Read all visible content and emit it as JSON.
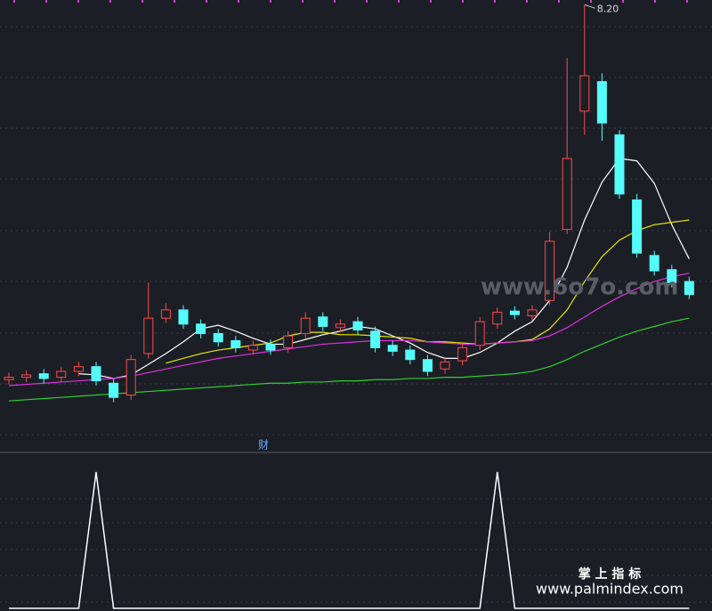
{
  "chart_data": [
    {
      "type": "candlestick",
      "open": [
        5.03,
        5.05,
        5.08,
        5.05,
        5.1,
        5.14,
        5.0,
        4.9,
        5.25,
        5.55,
        5.62,
        5.5,
        5.42,
        5.36,
        5.28,
        5.33,
        5.3,
        5.42,
        5.56,
        5.47,
        5.52,
        5.44,
        5.32,
        5.28,
        5.2,
        5.12,
        5.19,
        5.32,
        5.5,
        5.61,
        5.57,
        5.7,
        6.3,
        7.3,
        7.55,
        7.1,
        6.55,
        6.08,
        5.96,
        5.86
      ],
      "high": [
        5.09,
        5.11,
        5.12,
        5.14,
        5.18,
        5.18,
        5.04,
        5.24,
        5.85,
        5.68,
        5.66,
        5.54,
        5.46,
        5.4,
        5.36,
        5.37,
        5.44,
        5.6,
        5.6,
        5.54,
        5.56,
        5.48,
        5.36,
        5.32,
        5.24,
        5.22,
        5.34,
        5.56,
        5.64,
        5.65,
        5.66,
        6.28,
        7.75,
        8.2,
        7.62,
        7.14,
        6.6,
        6.12,
        6.0,
        5.9
      ],
      "low": [
        4.99,
        5.01,
        5.0,
        5.01,
        5.06,
        4.98,
        4.84,
        4.86,
        5.21,
        5.51,
        5.46,
        5.38,
        5.31,
        5.26,
        5.24,
        5.24,
        5.26,
        5.38,
        5.44,
        5.43,
        5.41,
        5.26,
        5.23,
        5.16,
        5.06,
        5.08,
        5.15,
        5.28,
        5.46,
        5.54,
        5.53,
        5.66,
        6.26,
        7.1,
        7.05,
        6.56,
        6.06,
        5.91,
        5.81,
        5.71
      ],
      "close": [
        5.05,
        5.07,
        5.04,
        5.1,
        5.14,
        5.02,
        4.88,
        5.2,
        5.55,
        5.62,
        5.5,
        5.42,
        5.35,
        5.3,
        5.32,
        5.28,
        5.4,
        5.55,
        5.48,
        5.5,
        5.45,
        5.3,
        5.27,
        5.2,
        5.1,
        5.18,
        5.3,
        5.52,
        5.6,
        5.58,
        5.62,
        6.2,
        6.9,
        7.6,
        7.2,
        6.6,
        6.1,
        5.95,
        5.85,
        5.75
      ],
      "up_color": "#ff4a4a",
      "down_color": "#54fcfc",
      "ylim": [
        4.55,
        8.24
      ],
      "series": [
        {
          "color": "#ffffff",
          "values": [
            null,
            null,
            null,
            null,
            5.08,
            5.07,
            5.04,
            5.07,
            5.16,
            5.25,
            5.35,
            5.46,
            5.49,
            5.44,
            5.38,
            5.33,
            5.33,
            5.37,
            5.41,
            5.44,
            5.48,
            5.46,
            5.4,
            5.34,
            5.26,
            5.21,
            5.21,
            5.26,
            5.34,
            5.44,
            5.52,
            5.7,
            5.98,
            6.38,
            6.7,
            6.9,
            6.88,
            6.69,
            6.34,
            6.05
          ]
        },
        {
          "color": "#e8e800",
          "values": [
            null,
            null,
            null,
            null,
            null,
            null,
            null,
            null,
            null,
            5.17,
            5.21,
            5.25,
            5.28,
            5.3,
            5.32,
            5.34,
            5.4,
            5.43,
            5.43,
            5.41,
            5.41,
            5.4,
            5.39,
            5.38,
            5.35,
            5.35,
            5.34,
            5.33,
            5.34,
            5.35,
            5.37,
            5.46,
            5.62,
            5.86,
            6.07,
            6.21,
            6.29,
            6.34,
            6.36,
            6.38
          ]
        },
        {
          "color": "#e030e0",
          "values": [
            4.98,
            4.99,
            5.0,
            5.01,
            5.02,
            5.03,
            5.04,
            5.06,
            5.09,
            5.12,
            5.15,
            5.18,
            5.21,
            5.23,
            5.25,
            5.27,
            5.29,
            5.31,
            5.33,
            5.34,
            5.35,
            5.36,
            5.36,
            5.36,
            5.35,
            5.34,
            5.33,
            5.33,
            5.34,
            5.35,
            5.36,
            5.4,
            5.47,
            5.56,
            5.65,
            5.73,
            5.8,
            5.86,
            5.9,
            5.93
          ]
        },
        {
          "color": "#30d030",
          "values": [
            4.85,
            4.86,
            4.87,
            4.88,
            4.89,
            4.9,
            4.91,
            4.92,
            4.93,
            4.94,
            4.95,
            4.96,
            4.97,
            4.98,
            4.99,
            5.0,
            5.0,
            5.01,
            5.01,
            5.02,
            5.02,
            5.03,
            5.03,
            5.04,
            5.04,
            5.05,
            5.05,
            5.06,
            5.07,
            5.08,
            5.1,
            5.14,
            5.2,
            5.27,
            5.33,
            5.39,
            5.44,
            5.48,
            5.52,
            5.55
          ]
        }
      ],
      "max_marker": {
        "value": 8.2,
        "label": "8.20"
      },
      "annotation": "财"
    },
    {
      "type": "line",
      "color": "#ffffff",
      "values": [
        0,
        0,
        0,
        0,
        0,
        1,
        0,
        0,
        0,
        0,
        0,
        0,
        0,
        0,
        0,
        0,
        0,
        0,
        0,
        0,
        0,
        0,
        0,
        0,
        0,
        0,
        0,
        0,
        1,
        0,
        0,
        0,
        0,
        0,
        0,
        0,
        0,
        0,
        0,
        0
      ],
      "ylim": [
        0,
        1
      ]
    }
  ],
  "watermarks": {
    "site": "www.6o7o.com",
    "brand": "掌 上 指 标",
    "url": "www.palmindex.com"
  }
}
